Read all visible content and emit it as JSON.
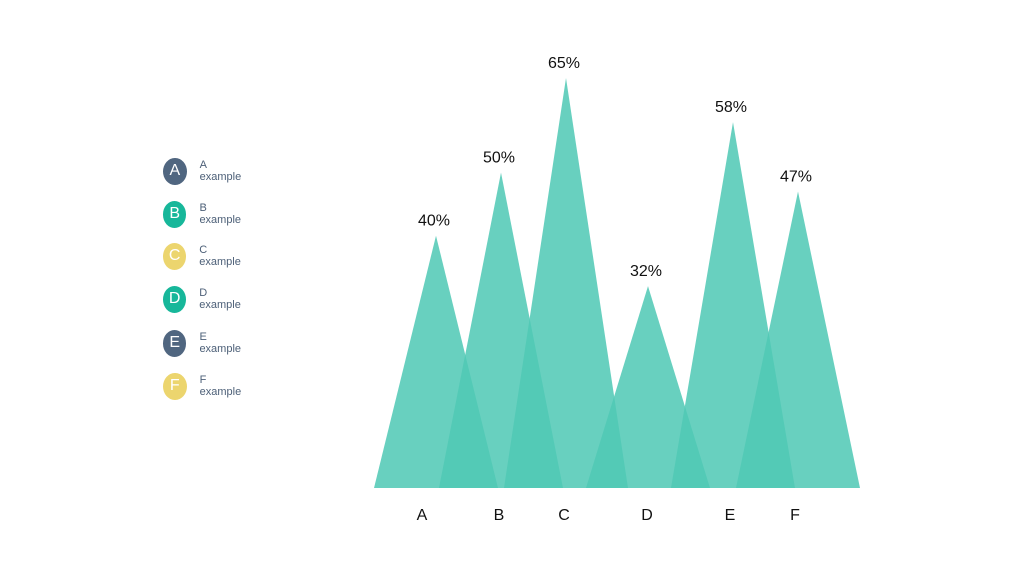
{
  "chart_data": {
    "type": "bar",
    "categories": [
      "A",
      "B",
      "C",
      "D",
      "E",
      "F"
    ],
    "values": [
      40,
      50,
      65,
      32,
      58,
      47
    ],
    "value_labels": [
      "40%",
      "50%",
      "65%",
      "32%",
      "58%",
      "47%"
    ],
    "ylim": [
      0,
      65
    ],
    "grid": false,
    "legend_placement": "left",
    "legend": [
      {
        "badge": "A",
        "label": "A example",
        "color": "#506680"
      },
      {
        "badge": "B",
        "label": "B example",
        "color": "#17b79a"
      },
      {
        "badge": "C",
        "label": "C example",
        "color": "#ecd56e"
      },
      {
        "badge": "D",
        "label": "D example",
        "color": "#17b79a"
      },
      {
        "badge": "E",
        "label": "E example",
        "color": "#506680"
      },
      {
        "badge": "F",
        "label": "F example",
        "color": "#ecd56e"
      }
    ],
    "series_color": "#4fc8b4"
  }
}
